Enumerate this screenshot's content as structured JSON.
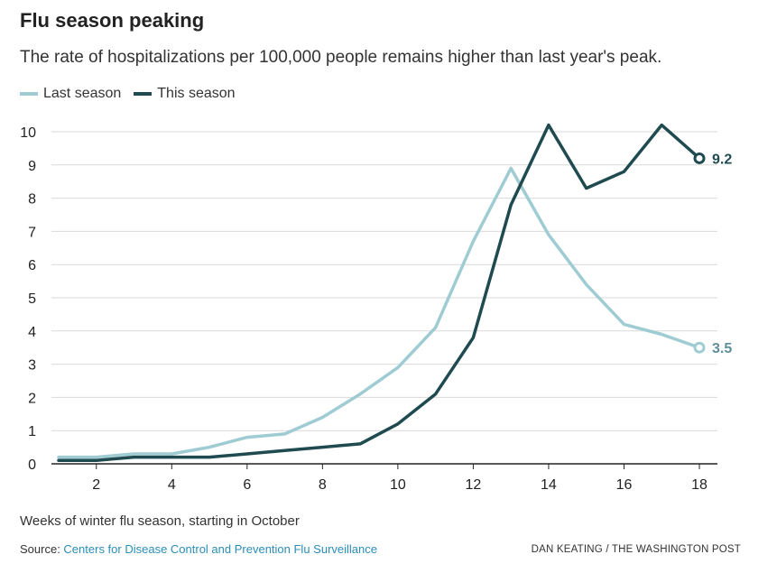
{
  "chart_data": {
    "type": "line",
    "title": "Flu season peaking",
    "subtitle": "The rate of hospitalizations per 100,000 people remains higher than last year's peak.",
    "xlabel": "Weeks of winter flu season, starting in October",
    "ylabel": "",
    "xlim": [
      1,
      18
    ],
    "ylim": [
      0,
      10
    ],
    "x_ticks": [
      2,
      4,
      6,
      8,
      10,
      12,
      14,
      16,
      18
    ],
    "y_ticks": [
      0,
      1,
      2,
      3,
      4,
      5,
      6,
      7,
      8,
      9,
      10
    ],
    "grid": "horizontal",
    "legend_position": "top-left",
    "x": [
      1,
      2,
      3,
      4,
      5,
      6,
      7,
      8,
      9,
      10,
      11,
      12,
      13,
      14,
      15,
      16,
      17,
      18
    ],
    "series": [
      {
        "name": "Last season",
        "color": "#9fccd3",
        "values": [
          0.2,
          0.2,
          0.3,
          0.3,
          0.5,
          0.8,
          0.9,
          1.4,
          2.1,
          2.9,
          4.1,
          6.7,
          8.9,
          6.9,
          5.4,
          4.2,
          3.9,
          3.5
        ],
        "end_label": "3.5"
      },
      {
        "name": "This season",
        "color": "#1f4a50",
        "values": [
          0.1,
          0.1,
          0.2,
          0.2,
          0.2,
          0.3,
          0.4,
          0.5,
          0.6,
          1.2,
          2.1,
          3.8,
          7.8,
          10.2,
          8.3,
          8.8,
          10.2,
          9.2
        ],
        "end_label": "9.2"
      }
    ]
  },
  "footer": {
    "source_prefix": "Source: ",
    "source_link": "Centers for Disease Control and Prevention Flu Surveillance",
    "credit": "DAN KEATING / THE WASHINGTON POST"
  },
  "colors": {
    "grid": "#d9d9d9",
    "axis": "#222222",
    "tick_text": "#222222"
  }
}
